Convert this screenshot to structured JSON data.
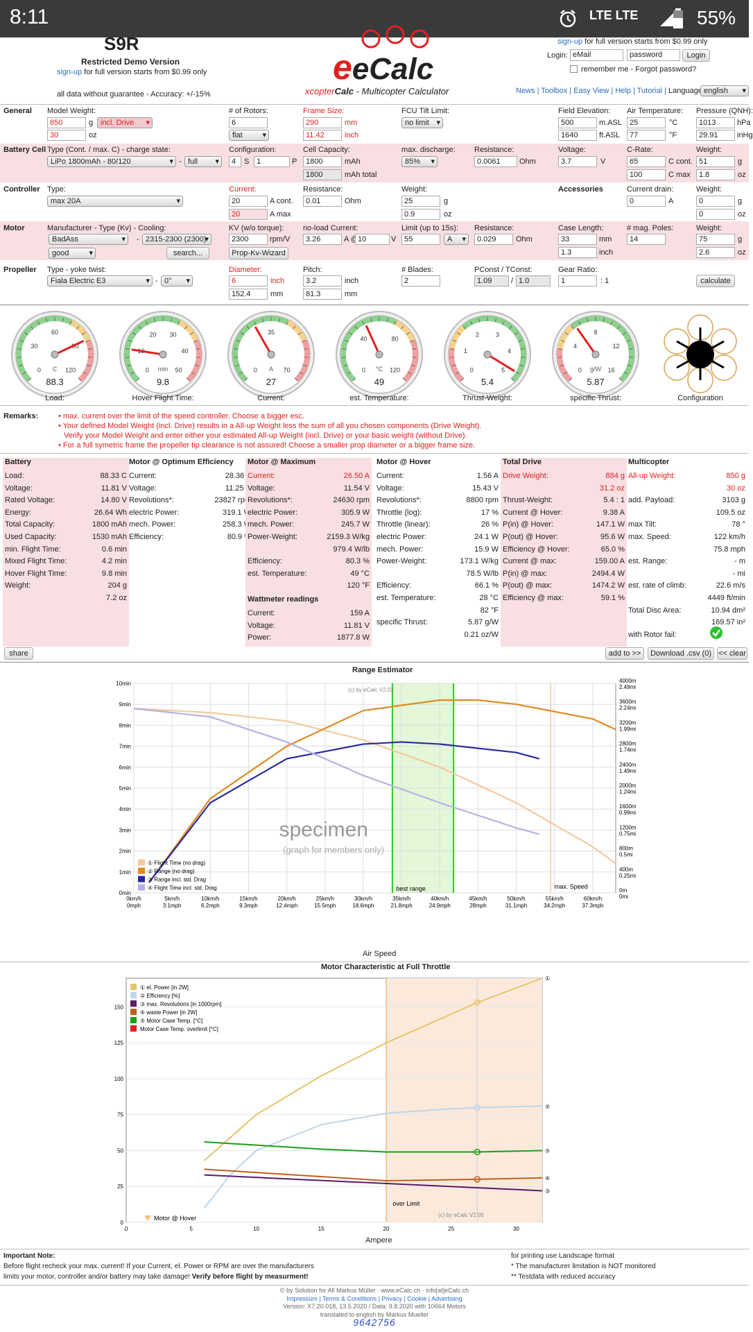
{
  "statusbar": {
    "time": "8:11",
    "network": "LTE LTE",
    "battery": "55%"
  },
  "header": {
    "logo_top": "S9R",
    "restricted": "Restricted Demo Version",
    "signup_link": "sign-up",
    "signup_text": "for full version starts from $0.99 only",
    "disclaimer": "all data without guarantee - Accuracy: +/-15%",
    "brand": "eCalc",
    "tagline_x": "xcopter",
    "tagline_calc": "Calc",
    "tagline_rest": " - Multicopter Calculator",
    "right_signup_link": "sign-up",
    "right_signup_text": "for full version starts from $0.99 only",
    "login_label": "Login:",
    "email_ph": "eMail",
    "password_ph": "password",
    "login_btn": "Login",
    "remember": "remember me - Forgot password?",
    "nav": [
      "News",
      "Toolbox",
      "Easy View",
      "Help",
      "Tutorial"
    ],
    "language_label": "Language:",
    "language": "english"
  },
  "general": {
    "title": "General",
    "model_weight_label": "Model Weight:",
    "weight_g": "850",
    "g": "g",
    "drive": "incl. Drive",
    "weight_oz": "30",
    "oz": "oz",
    "rotors_label": "# of Rotors:",
    "rotors": "6",
    "layout": "flat",
    "frame_label": "Frame Size:",
    "frame_mm": "290",
    "mm": "mm",
    "frame_inch": "11.42",
    "inch": "inch",
    "fcu_label": "FCU Tilt Limit:",
    "fcu": "no limit",
    "elev_label": "Field Elevation:",
    "elev_m": "500",
    "m_asl": "m.ASL",
    "elev_ft": "1640",
    "ft_asl": "ft.ASL",
    "air_label": "Air Temperature:",
    "air_c": "25",
    "c": "°C",
    "air_f": "77",
    "f": "°F",
    "press_label": "Pressure (QNH):",
    "press_hpa": "1013",
    "hpa": "hPa",
    "press_inhg": "29.91",
    "inhg": "inHg"
  },
  "battery": {
    "title": "Battery Cell",
    "type_label": "Type (Cont. / max. C) - charge state:",
    "type": "LiPo 1800mAh - 80/120",
    "charge": "full",
    "config_label": "Configuration:",
    "s": "4",
    "s_unit": "S",
    "p": "1",
    "p_unit": "P",
    "cap_label": "Cell Capacity:",
    "cap": "1800",
    "mah": "mAh",
    "cap_total": "1800",
    "mah_total": "mAh total",
    "disch_label": "max. discharge:",
    "disch": "85%",
    "res_label": "Resistance:",
    "res": "0.0061",
    "ohm": "Ohm",
    "volt_label": "Voltage:",
    "volt": "3.7",
    "v": "V",
    "crate_label": "C-Rate:",
    "c_cont": "65",
    "c_cont_unit": "C cont.",
    "c_max": "100",
    "c_max_unit": "C max",
    "w_label": "Weight:",
    "w_g": "51",
    "g": "g",
    "w_oz": "1.8",
    "oz": "oz"
  },
  "controller": {
    "title": "Controller",
    "type_label": "Type:",
    "type": "max 20A",
    "current_label": "Current:",
    "cur_cont": "20",
    "cur_cont_unit": "A cont.",
    "cur_max": "20",
    "cur_max_unit": "A max",
    "res_label": "Resistance:",
    "res": "0.01",
    "ohm": "Ohm",
    "w_label": "Weight:",
    "w_g": "25",
    "g": "g",
    "w_oz": "0.9",
    "oz": "oz",
    "acc_title": "Accessories",
    "drain_label": "Current drain:",
    "drain": "0",
    "a": "A",
    "acc_w_label": "Weight:",
    "acc_g": "0",
    "acc_oz": "0"
  },
  "motor": {
    "title": "Motor",
    "mfr_label": "Manufacturer - Type (Kv) - Cooling:",
    "mfr": "BadAss",
    "model": "2315-2300 (2300)",
    "cooling": "good",
    "search": "search...",
    "kv_label": "KV (w/o torque):",
    "kv": "2300",
    "rpmv": "rpm/V",
    "wizard": "Prop-Kv-Wizard",
    "noload_label": "no-load Current:",
    "noload_a": "3.26",
    "a_at": "A @",
    "noload_v": "10",
    "v": "V",
    "limit_label": "Limit (up to 15s):",
    "limit": "55",
    "limit_unit": "A",
    "res_label": "Resistance:",
    "res": "0.029",
    "ohm": "Ohm",
    "case_label": "Case Length:",
    "case_mm": "33",
    "mm": "mm",
    "case_in": "1.3",
    "inch": "inch",
    "poles_label": "# mag. Poles:",
    "poles": "14",
    "w_label": "Weight:",
    "w_g": "75",
    "g": "g",
    "w_oz": "2.6",
    "oz": "oz"
  },
  "propeller": {
    "title": "Propeller",
    "type_label": "Type - yoke twist:",
    "type": "Fiala Electric E3",
    "twist": "0°",
    "dia_label": "Diameter:",
    "dia_in": "6",
    "inch": "inch",
    "dia_mm": "152.4",
    "mm": "mm",
    "pitch_label": "Pitch:",
    "pitch_in": "3.2",
    "pitch_mm": "81.3",
    "blades_label": "# Blades:",
    "blades": "2",
    "pconst_label": "PConst / TConst:",
    "pconst": "1.09",
    "slash": "/",
    "tconst": "1.0",
    "gear_label": "Gear Ratio:",
    "gear": "1",
    "ratio": ": 1",
    "calc_btn": "calculate"
  },
  "gauges": [
    {
      "value": "88.3",
      "unit": "C",
      "title": "Load:",
      "ticks": [
        "0",
        "30",
        "60",
        "90",
        "120"
      ],
      "needle": 0.74
    },
    {
      "value": "9.8",
      "unit": "min",
      "title": "Hover Flight Time:",
      "ticks": [
        "0",
        "10",
        "20",
        "30",
        "40",
        "50"
      ],
      "needle": 0.2
    },
    {
      "value": "27",
      "unit": "A",
      "title": "Current:",
      "ticks": [
        "0",
        "35",
        "70"
      ],
      "needle": 0.39
    },
    {
      "value": "49",
      "unit": "°C",
      "title": "est. Temperature:",
      "ticks": [
        "0",
        "40",
        "80",
        "120"
      ],
      "needle": 0.41
    },
    {
      "value": "5.4",
      "unit": "",
      "title": "Thrust-Weight:",
      "ticks": [
        "0",
        "1",
        "2",
        "3",
        "4",
        "5"
      ],
      "needle": 0.95
    },
    {
      "value": "5.87",
      "unit": "g/W",
      "title": "specific Thrust:",
      "ticks": [
        "0",
        "4",
        "8",
        "12",
        "16"
      ],
      "needle": 0.37
    }
  ],
  "config_label": "Configuration",
  "remarks": {
    "title": "Remarks:",
    "items": [
      "max. current over the limit of the speed controller. Choose a bigger esc.",
      "Your defined Model Weight (incl. Drive) results in a All-up Weight less the sum of all you chosen components (Drive Weight).",
      "Verify your Model Weight and enter either your estimated All-up Weight (incl. Drive) or your basic weight (without Drive).",
      "For a full symetric frame the propeller tip clearance is not assured! Choose a smaller prop diameter or a bigger frame size."
    ]
  },
  "results": {
    "battery": {
      "title": "Battery",
      "rows": [
        [
          "Load:",
          "88.33 C"
        ],
        [
          "Voltage:",
          "11.81 V"
        ],
        [
          "Rated Voltage:",
          "14.80 V"
        ],
        [
          "Energy:",
          "26.64 Wh"
        ],
        [
          "Total Capacity:",
          "1800 mAh"
        ],
        [
          "Used Capacity:",
          "1530 mAh"
        ],
        [
          "min. Flight Time:",
          "0.6 min"
        ],
        [
          "Mixed Flight Time:",
          "4.2 min"
        ],
        [
          "Hover Flight Time:",
          "9.8 min"
        ],
        [
          "Weight:",
          "204 g"
        ],
        [
          "",
          "7.2 oz"
        ]
      ]
    },
    "opt": {
      "title": "Motor @ Optimum Efficiency",
      "rows": [
        [
          "Current:",
          "28.36 A"
        ],
        [
          "Voltage:",
          "11.25 V"
        ],
        [
          "Revolutions*:",
          "23827 rpm"
        ],
        [
          "electric Power:",
          "319.1 W"
        ],
        [
          "mech. Power:",
          "258.3 W"
        ],
        [
          "Efficiency:",
          "80.9 %"
        ]
      ]
    },
    "max": {
      "title": "Motor @ Maximum",
      "rows": [
        [
          "Current:",
          "26.50 A"
        ],
        [
          "Voltage:",
          "11.54 V"
        ],
        [
          "Revolutions*:",
          "24630 rpm"
        ],
        [
          "electric Power:",
          "305.9 W"
        ],
        [
          "mech. Power:",
          "245.7 W"
        ],
        [
          "Power-Weight:",
          "2159.3 W/kg"
        ],
        [
          "",
          "979.4 W/lb"
        ],
        [
          "Efficiency:",
          "80.3 %"
        ],
        [
          "est. Temperature:",
          "49 °C"
        ],
        [
          "",
          "120 °F"
        ]
      ],
      "watt_title": "Wattmeter readings",
      "watt": [
        [
          "Current:",
          "159 A"
        ],
        [
          "Voltage:",
          "11.81 V"
        ],
        [
          "Power:",
          "1877.8 W"
        ]
      ]
    },
    "hover": {
      "title": "Motor @ Hover",
      "rows": [
        [
          "Current:",
          "1.56 A"
        ],
        [
          "Voltage:",
          "15.43 V"
        ],
        [
          "Revolutions*:",
          "8800 rpm"
        ],
        [
          "Throttle (log):",
          "17 %"
        ],
        [
          "Throttle (linear):",
          "26 %"
        ],
        [
          "electric Power:",
          "24.1 W"
        ],
        [
          "mech. Power:",
          "15.9 W"
        ],
        [
          "Power-Weight:",
          "173.1 W/kg"
        ],
        [
          "",
          "78.5 W/lb"
        ],
        [
          "Efficiency:",
          "66.1 %"
        ],
        [
          "est. Temperature:",
          "28 °C"
        ],
        [
          "",
          "82 °F"
        ],
        [
          "specific Thrust:",
          "5.87 g/W"
        ],
        [
          "",
          "0.21 oz/W"
        ]
      ]
    },
    "drive": {
      "title": "Total Drive",
      "rows": [
        [
          "Drive Weight:",
          "884 g"
        ],
        [
          "",
          "31.2 oz"
        ],
        [
          "Thrust-Weight:",
          "5.4 : 1"
        ],
        [
          "Current @ Hover:",
          "9.38 A"
        ],
        [
          "P(in) @ Hover:",
          "147.1 W"
        ],
        [
          "P(out) @ Hover:",
          "95.6 W"
        ],
        [
          "Efficiency @ Hover:",
          "65.0 %"
        ],
        [
          "Current @ max:",
          "159.00 A"
        ],
        [
          "P(in) @ max:",
          "2494.4 W"
        ],
        [
          "P(out) @ max:",
          "1474.2 W"
        ],
        [
          "Efficiency @ max:",
          "59.1 %"
        ]
      ]
    },
    "multi": {
      "title": "Multicopter",
      "rows": [
        [
          "All-up Weight:",
          "850 g"
        ],
        [
          "",
          "30 oz"
        ],
        [
          "add. Payload:",
          "3103 g"
        ],
        [
          "",
          "109.5 oz"
        ],
        [
          "max Tilt:",
          "78 °"
        ],
        [
          "max. Speed:",
          "122 km/h"
        ],
        [
          "",
          "75.8 mph"
        ],
        [
          "est. Range:",
          "- m"
        ],
        [
          "",
          "- mi"
        ],
        [
          "est. rate of climb:",
          "22.6 m/s"
        ],
        [
          "",
          "4449 ft/min"
        ],
        [
          "Total Disc Area:",
          "10.94 dm²"
        ],
        [
          "",
          "169.57 in²"
        ],
        [
          "with Rotor fail:",
          ""
        ]
      ]
    }
  },
  "actions": {
    "share": "share",
    "add": "add to >>",
    "download": "Download .csv (0)",
    "clear": "<< clear"
  },
  "range_chart": {
    "title": "Range Estimator",
    "watermark": "(c) by eCalc  V2.03",
    "specimen": "specimen",
    "members": "(graph for members only)",
    "xlabel": "Air Speed",
    "best": "best range",
    "maxspeed": "max. Speed",
    "yticks": [
      "0min",
      "1min",
      "2min",
      "3min",
      "4min",
      "5min",
      "6min",
      "7min",
      "8min",
      "9min",
      "10min"
    ],
    "xticks": [
      [
        "0km/h",
        "0mph"
      ],
      [
        "5km/h",
        "3.1mph"
      ],
      [
        "10km/h",
        "6.2mph"
      ],
      [
        "15km/h",
        "9.3mph"
      ],
      [
        "20km/h",
        "12.4mph"
      ],
      [
        "25km/h",
        "15.5mph"
      ],
      [
        "30km/h",
        "18.6mph"
      ],
      [
        "35km/h",
        "21.8mph"
      ],
      [
        "40km/h",
        "24.9mph"
      ],
      [
        "45km/h",
        "28mph"
      ],
      [
        "50km/h",
        "31.1mph"
      ],
      [
        "55km/h",
        "34.2mph"
      ],
      [
        "60km/h",
        "37.3mph"
      ]
    ],
    "y2ticks": [
      [
        "0m",
        "0mi"
      ],
      [
        "400m",
        "0.25mi"
      ],
      [
        "800m",
        "0.5mi"
      ],
      [
        "1200m",
        "0.75mi"
      ],
      [
        "1600m",
        "0.99mi"
      ],
      [
        "2000m",
        "1.24mi"
      ],
      [
        "2400m",
        "1.49mi"
      ],
      [
        "2800m",
        "1.74mi"
      ],
      [
        "3200m",
        "1.99mi"
      ],
      [
        "3600m",
        "2.24mi"
      ],
      [
        "4000m",
        "2.49mi"
      ]
    ],
    "legend": [
      "① Flight Time (no drag)",
      "② Range (no drag)",
      "③ Range incl. std. Drag",
      "④ Flight Time incl. std. Drag"
    ],
    "colors": [
      "#f5c9a0",
      "#e08a20",
      "#2a2aa0",
      "#b8b0e0"
    ]
  },
  "chart_data": [
    {
      "type": "line",
      "title": "Range Estimator",
      "xlabel": "Air Speed",
      "ylabel": "",
      "xlim": [
        0,
        63
      ],
      "ylim": [
        0,
        10
      ],
      "series": [
        {
          "name": "Flight Time (no drag)",
          "x": [
            0,
            10,
            20,
            30,
            40,
            50,
            60,
            63
          ],
          "values": [
            8.8,
            8.6,
            8.2,
            7.3,
            6.0,
            4.3,
            2.2,
            1.4
          ]
        },
        {
          "name": "Range (no drag)",
          "x": [
            2,
            10,
            20,
            30,
            40,
            45,
            50,
            60,
            63
          ],
          "values": [
            0.5,
            4.5,
            7.0,
            8.7,
            9.2,
            9.2,
            9.0,
            8.3,
            7.8
          ]
        },
        {
          "name": "Range incl. std. Drag",
          "x": [
            2,
            10,
            20,
            30,
            35,
            40,
            50,
            53
          ],
          "values": [
            0.5,
            4.3,
            6.4,
            7.1,
            7.2,
            7.1,
            6.7,
            6.4
          ]
        },
        {
          "name": "Flight Time incl. std. Drag",
          "x": [
            0,
            10,
            20,
            30,
            40,
            50,
            53
          ],
          "values": [
            8.8,
            8.4,
            7.2,
            5.6,
            4.3,
            3.1,
            2.8
          ]
        }
      ]
    },
    {
      "type": "line",
      "title": "Motor Characteristic at Full Throttle",
      "xlabel": "Ampere",
      "ylabel": "",
      "xlim": [
        0,
        32
      ],
      "ylim": [
        0,
        170
      ],
      "series": [
        {
          "name": "el. Power [in 2W]",
          "x": [
            6,
            10,
            15,
            20,
            25,
            27,
            32
          ],
          "values": [
            43,
            75,
            102,
            125,
            145,
            153,
            170
          ]
        },
        {
          "name": "Efficiency [%]",
          "x": [
            6,
            8,
            10,
            15,
            20,
            25,
            27,
            32
          ],
          "values": [
            10,
            33,
            50,
            68,
            76,
            79,
            80,
            81
          ]
        },
        {
          "name": "max. Revolutions [in 1000rpm]",
          "x": [
            6,
            32
          ],
          "values": [
            33,
            22
          ]
        },
        {
          "name": "waste Power [in 2W]",
          "x": [
            6,
            20,
            27,
            32
          ],
          "values": [
            37,
            29,
            30,
            31
          ]
        },
        {
          "name": "Motor Case Temp. [°C]",
          "x": [
            6,
            15,
            20,
            25,
            27,
            32
          ],
          "values": [
            56,
            51,
            49,
            49,
            49,
            50
          ]
        }
      ]
    }
  ],
  "motor_chart": {
    "title": "Motor Characteristic at Full Throttle",
    "watermark": "(c) by eCalc  V2.05",
    "xlabel": "Ampere",
    "hover": "Motor @ Hover",
    "over": "over Limit",
    "yticks": [
      "0",
      "25",
      "50",
      "75",
      "100",
      "125",
      "150"
    ],
    "xticks": [
      "0",
      "5",
      "10",
      "15",
      "20",
      "25",
      "30"
    ],
    "legend": [
      "① el. Power [in 2W]",
      "② Efficiency [%]",
      "③ max. Revolutions [in 1000rpm]",
      "④ waste Power [in 2W]",
      "⑤ Motor Case Temp. [°C]",
      "Motor Case Temp. overlimit [°C]"
    ],
    "colors": [
      "#e8c46a",
      "#bcd6ec",
      "#5a1a6a",
      "#c0601a",
      "#1aa01a",
      "#e02020"
    ]
  },
  "footer": {
    "important": "Important Note:",
    "line1": "Before flight recheck your max. current! If your Current, el. Power or RPM are over the manufacturers",
    "line2": "limits your motor, controller and/or battery may take damage!",
    "line2b": "Verify before flight by measurment!",
    "r1": "for printing use Landscape format",
    "r2": "* The manufacturer limitation is NOT monitored",
    "r3": "** Testdata with reduced accuracy",
    "c1": "© by Solution for All Markus Müller · www.eCalc.ch · info[at]eCalc.ch",
    "c2": "Impressum | Terms & Conditions | Privacy | Cookie | Advertising",
    "c3": "Version: X7.20.018, 13.5.2020 / Data: 9.8.2020 with 10664 Motors",
    "c4": "translated to english by Markus Mueller",
    "counter": "9642756"
  }
}
